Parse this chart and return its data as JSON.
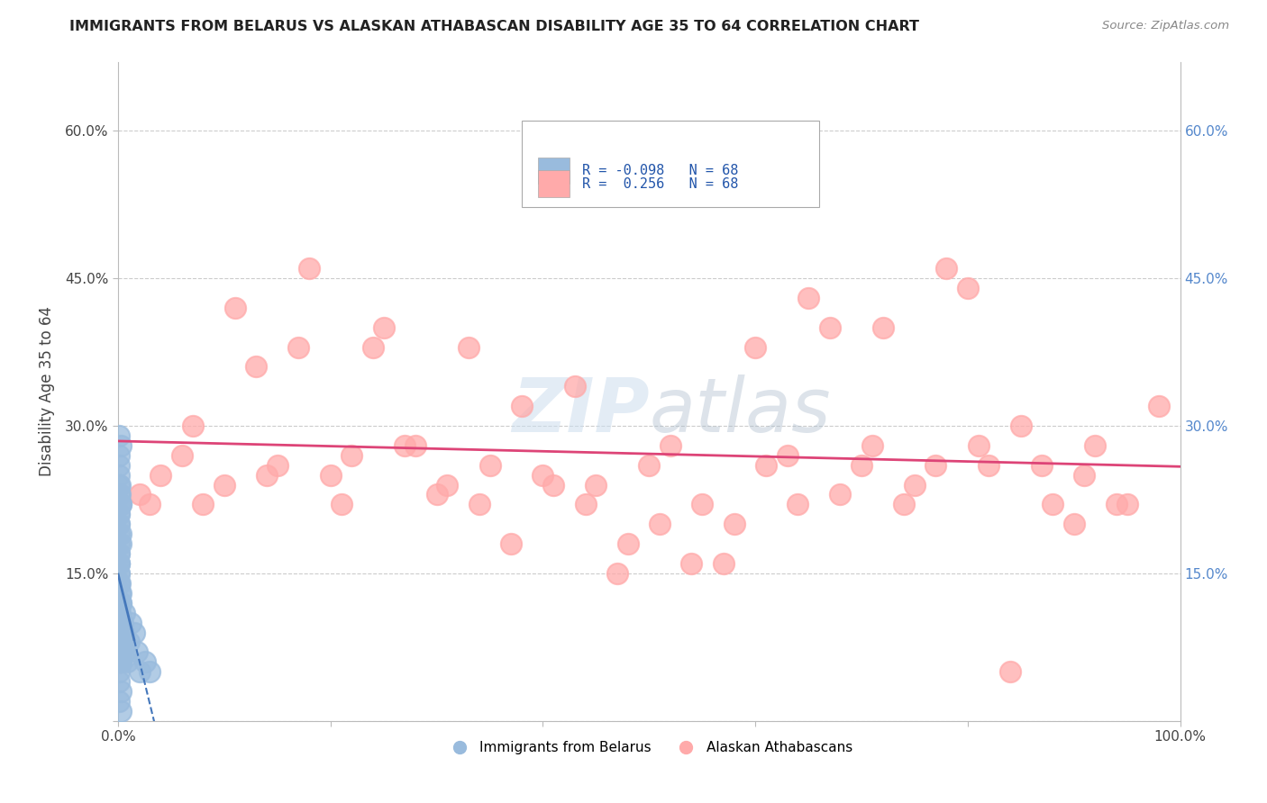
{
  "title": "IMMIGRANTS FROM BELARUS VS ALASKAN ATHABASCAN DISABILITY AGE 35 TO 64 CORRELATION CHART",
  "source": "Source: ZipAtlas.com",
  "ylabel": "Disability Age 35 to 64",
  "xlim": [
    0.0,
    1.0
  ],
  "ylim": [
    0.0,
    0.67
  ],
  "x_ticks": [
    0.0,
    0.2,
    0.4,
    0.6,
    0.8,
    1.0
  ],
  "x_tick_labels": [
    "0.0%",
    "",
    "",
    "",
    "",
    "100.0%"
  ],
  "y_ticks": [
    0.0,
    0.15,
    0.3,
    0.45,
    0.6
  ],
  "y_tick_labels": [
    "",
    "15.0%",
    "30.0%",
    "45.0%",
    "60.0%"
  ],
  "right_y_ticks": [
    0.15,
    0.3,
    0.45,
    0.6
  ],
  "right_y_tick_labels": [
    "15.0%",
    "30.0%",
    "45.0%",
    "60.0%"
  ],
  "legend_label1": "Immigrants from Belarus",
  "legend_label2": "Alaskan Athabascans",
  "R1": -0.098,
  "R2": 0.256,
  "N1": 68,
  "N2": 68,
  "color_blue": "#99BBDD",
  "color_pink": "#FFAAAA",
  "color_blue_line": "#4477BB",
  "color_pink_line": "#DD4477",
  "background_color": "#FFFFFF",
  "grid_color": "#CCCCCC",
  "blue_dots_x": [
    0.001,
    0.002,
    0.001,
    0.002,
    0.001,
    0.001,
    0.0015,
    0.001,
    0.002,
    0.001,
    0.0005,
    0.001,
    0.0015,
    0.001,
    0.002,
    0.001,
    0.001,
    0.0015,
    0.001,
    0.001,
    0.002,
    0.001,
    0.0015,
    0.002,
    0.001,
    0.001,
    0.002,
    0.001,
    0.0015,
    0.001,
    0.001,
    0.002,
    0.001,
    0.001,
    0.0015,
    0.002,
    0.001,
    0.001,
    0.002,
    0.001,
    0.001,
    0.001,
    0.0015,
    0.002,
    0.001,
    0.001,
    0.002,
    0.001,
    0.0015,
    0.001,
    0.003,
    0.004,
    0.005,
    0.006,
    0.007,
    0.008,
    0.01,
    0.012,
    0.015,
    0.018,
    0.02,
    0.025,
    0.03,
    0.001,
    0.001,
    0.002,
    0.001,
    0.002
  ],
  "blue_dots_y": [
    0.2,
    0.18,
    0.16,
    0.22,
    0.14,
    0.12,
    0.24,
    0.1,
    0.08,
    0.26,
    0.17,
    0.15,
    0.13,
    0.21,
    0.19,
    0.11,
    0.09,
    0.07,
    0.23,
    0.25,
    0.06,
    0.16,
    0.14,
    0.12,
    0.18,
    0.08,
    0.1,
    0.2,
    0.22,
    0.05,
    0.04,
    0.06,
    0.07,
    0.09,
    0.11,
    0.13,
    0.15,
    0.17,
    0.03,
    0.02,
    0.19,
    0.21,
    0.23,
    0.01,
    0.16,
    0.14,
    0.12,
    0.1,
    0.08,
    0.06,
    0.08,
    0.1,
    0.09,
    0.11,
    0.07,
    0.06,
    0.08,
    0.1,
    0.09,
    0.07,
    0.05,
    0.06,
    0.05,
    0.27,
    0.29,
    0.28,
    0.24,
    0.22
  ],
  "pink_dots_x": [
    0.02,
    0.04,
    0.06,
    0.08,
    0.1,
    0.13,
    0.15,
    0.17,
    0.2,
    0.22,
    0.25,
    0.28,
    0.3,
    0.33,
    0.35,
    0.38,
    0.4,
    0.43,
    0.45,
    0.48,
    0.5,
    0.52,
    0.55,
    0.58,
    0.6,
    0.63,
    0.65,
    0.68,
    0.7,
    0.72,
    0.75,
    0.78,
    0.8,
    0.82,
    0.85,
    0.88,
    0.9,
    0.92,
    0.95,
    0.98,
    0.03,
    0.07,
    0.11,
    0.14,
    0.18,
    0.21,
    0.24,
    0.27,
    0.31,
    0.34,
    0.37,
    0.41,
    0.44,
    0.47,
    0.51,
    0.54,
    0.57,
    0.61,
    0.64,
    0.67,
    0.71,
    0.74,
    0.77,
    0.81,
    0.84,
    0.87,
    0.91,
    0.94
  ],
  "pink_dots_y": [
    0.23,
    0.25,
    0.27,
    0.22,
    0.24,
    0.36,
    0.26,
    0.38,
    0.25,
    0.27,
    0.4,
    0.28,
    0.23,
    0.38,
    0.26,
    0.32,
    0.25,
    0.34,
    0.24,
    0.18,
    0.26,
    0.28,
    0.22,
    0.2,
    0.38,
    0.27,
    0.43,
    0.23,
    0.26,
    0.4,
    0.24,
    0.46,
    0.44,
    0.26,
    0.3,
    0.22,
    0.2,
    0.28,
    0.22,
    0.32,
    0.22,
    0.3,
    0.42,
    0.25,
    0.46,
    0.22,
    0.38,
    0.28,
    0.24,
    0.22,
    0.18,
    0.24,
    0.22,
    0.15,
    0.2,
    0.16,
    0.16,
    0.26,
    0.22,
    0.4,
    0.28,
    0.22,
    0.26,
    0.28,
    0.05,
    0.26,
    0.25,
    0.22
  ]
}
